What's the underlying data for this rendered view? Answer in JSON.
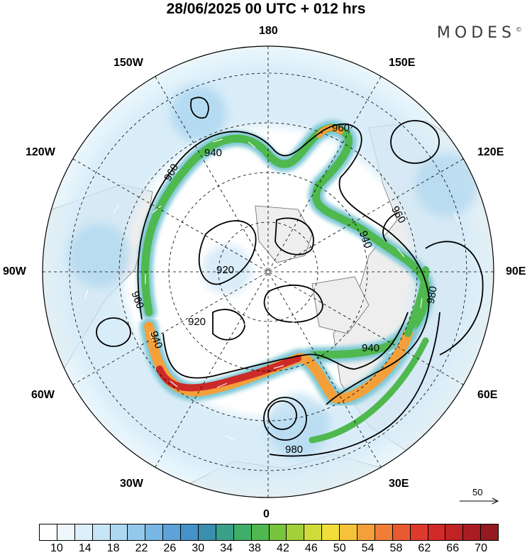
{
  "title": "28/06/2025  00 UTC  + 012 hrs",
  "brand": "MODES",
  "brand_mark": "©",
  "longitude_labels": {
    "top": "180",
    "bottom": "0",
    "left": "90W",
    "right": "90E",
    "upper_left_1": "150W",
    "upper_left_2": "120W",
    "upper_right_1": "150E",
    "upper_right_2": "120E",
    "lower_left_1": "60W",
    "lower_left_2": "30W",
    "lower_right_1": "60E",
    "lower_right_2": "30E"
  },
  "contour_labels": [
    "960",
    "940",
    "960",
    "960",
    "940",
    "920",
    "920",
    "960",
    "940",
    "940",
    "980",
    "980"
  ],
  "vector_reference": "50",
  "colorbar": {
    "ticks": [
      "10",
      "14",
      "18",
      "22",
      "26",
      "30",
      "34",
      "38",
      "42",
      "46",
      "50",
      "54",
      "58",
      "62",
      "66",
      "70"
    ],
    "colors": [
      "#ffffff",
      "#eef7fc",
      "#dceffa",
      "#c6e5f6",
      "#aed8f1",
      "#94c9eb",
      "#78b7e3",
      "#5da3d9",
      "#4592c9",
      "#3a8fb0",
      "#3aa08a",
      "#3fae68",
      "#4fb84e",
      "#79c43f",
      "#a3d03a",
      "#cfdc3a",
      "#f1de3a",
      "#f6c23a",
      "#f4a03a",
      "#ef7d36",
      "#e85a31",
      "#de3b2c",
      "#d12a27",
      "#bf2324",
      "#a91d22",
      "#941a20"
    ]
  },
  "colors": {
    "background_sea": "#ffffff",
    "land": "#eeeeee",
    "weak_wind": "#b7dbf2",
    "jet_core": "#cc2a27"
  }
}
